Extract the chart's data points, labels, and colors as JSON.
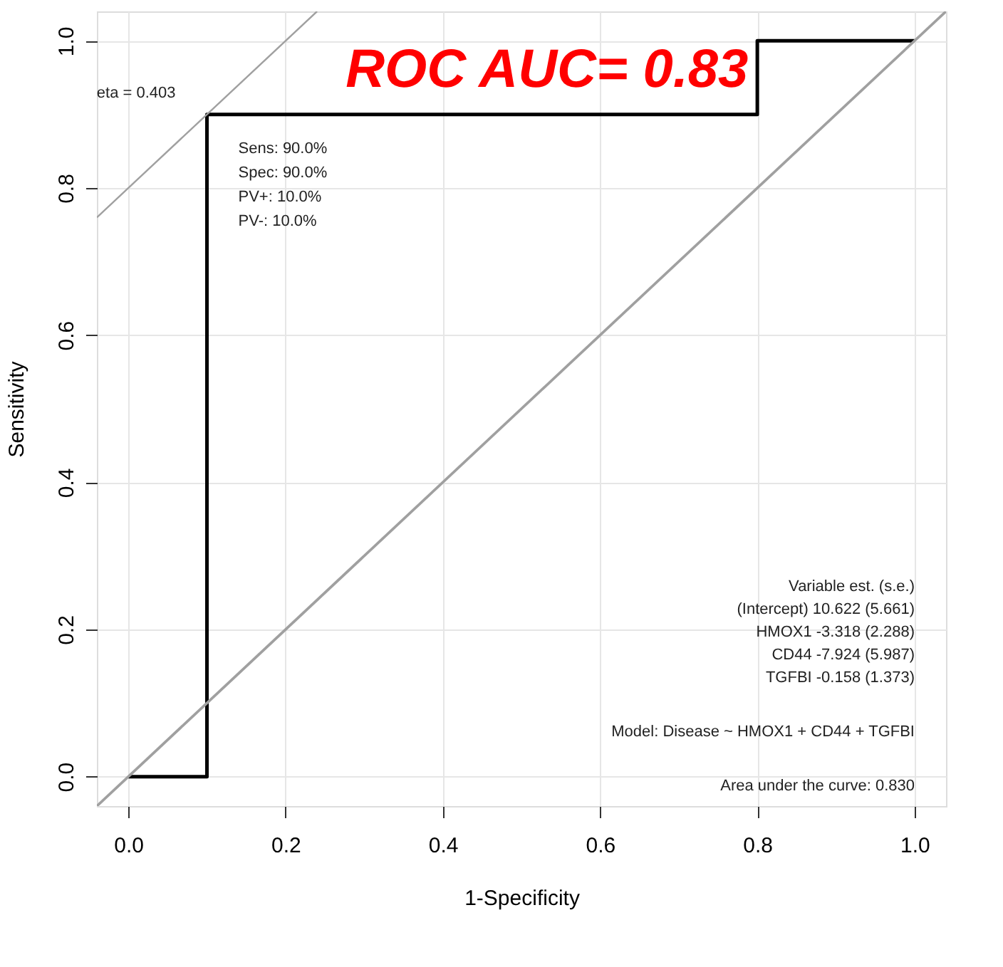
{
  "chart_data": {
    "type": "line",
    "title": "ROC AUC= 0.83",
    "xlabel": "1-Specificity",
    "ylabel": "Sensitivity",
    "xlim": [
      -0.04,
      1.04
    ],
    "ylim": [
      -0.04,
      1.04
    ],
    "xticks": [
      {
        "value": 0,
        "label": "0.0"
      },
      0.2,
      0.4,
      0.6,
      0.8,
      {
        "value": 1,
        "label": "1.0"
      }
    ],
    "yticks": [
      {
        "value": 0,
        "label": "0.0"
      },
      0.2,
      0.4,
      0.6,
      0.8,
      {
        "value": 1,
        "label": "1.0"
      }
    ],
    "grid": true,
    "legend": false,
    "marker": "none",
    "line_style": "solid",
    "series": [
      {
        "color": "#000000",
        "x": [
          0,
          0.1,
          0.1,
          0.8,
          0.8,
          1
        ],
        "values": [
          0,
          0,
          0.9,
          0.9,
          1,
          1
        ]
      },
      {
        "color": "#a0a0a0",
        "x": [
          -0.04,
          1.04
        ],
        "values": [
          -0.04,
          1.04
        ]
      },
      {
        "color": "#a0a0a0",
        "x": [
          -0.04,
          0.24
        ],
        "values": [
          0.76,
          1.04
        ]
      }
    ],
    "annotations": [
      {
        "text": "eta = 0.403",
        "x": 0.1,
        "y": 0.9
      },
      {
        "text": "Sens: 90.0%\nSpec: 90.0%\nPV+: 10.0%\nPV-: 10.0%",
        "x": 0.1,
        "y": 0.9
      },
      "Variable     est.    (s.e.)",
      "(Intercept)  10.622  (5.661)",
      "HMOX1   -3.318  (2.288)",
      "CD44   -7.924  (5.987)",
      "TGFBI   -0.158  (1.373)",
      "Model:  Disease ~ HMOX1 + CD44 + TGFBI",
      "Area under the curve: 0.830"
    ]
  }
}
